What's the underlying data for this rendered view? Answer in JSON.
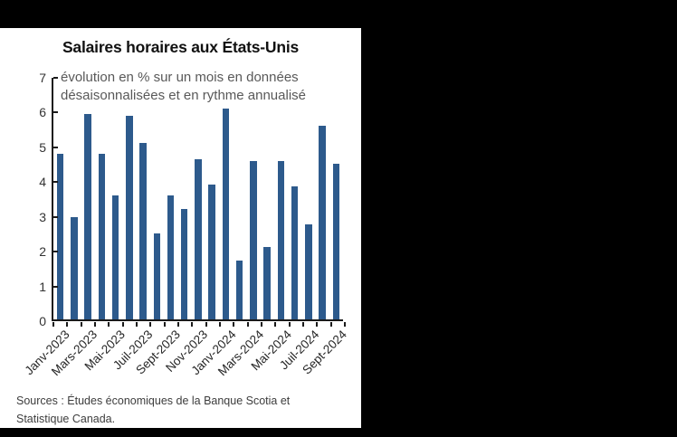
{
  "frame": {
    "background_color": "#000000",
    "card_color": "#ffffff"
  },
  "chart_data": {
    "type": "bar",
    "title": "Salaires horaires aux États-Unis",
    "subtitle_lines": [
      "évolution en % sur un mois en données",
      "désaisonnalisées et en rythme annualisé"
    ],
    "source_lines": [
      "Sources : Études économiques de la Banque Scotia et",
      "Statistique Canada."
    ],
    "ylim": [
      0,
      7
    ],
    "y_ticks": [
      7,
      6,
      5,
      4,
      3,
      2,
      1,
      0
    ],
    "values": [
      4.8,
      2.95,
      5.95,
      4.8,
      3.6,
      5.9,
      5.1,
      2.5,
      3.6,
      3.2,
      4.65,
      3.9,
      6.1,
      1.7,
      4.6,
      2.1,
      4.6,
      3.85,
      2.75,
      5.6,
      4.5
    ],
    "x_tick_labels": [
      "Janv-2023",
      "Mars-2023",
      "Mai-2023",
      "Juil-2023",
      "Sept-2023",
      "Nov-2023",
      "Janv-2024",
      "Mars-2024",
      "Mai-2024",
      "Juil-2024",
      "Sept-2024"
    ],
    "x_tick_label_indices": [
      0,
      2,
      4,
      6,
      8,
      10,
      12,
      14,
      16,
      18,
      20
    ],
    "bar_color": "#2d5a8c",
    "axis_color": "#1a1a1a",
    "subtitle_color": "#595959",
    "grid": "off",
    "legend": "none",
    "xlabel": "",
    "ylabel": ""
  }
}
